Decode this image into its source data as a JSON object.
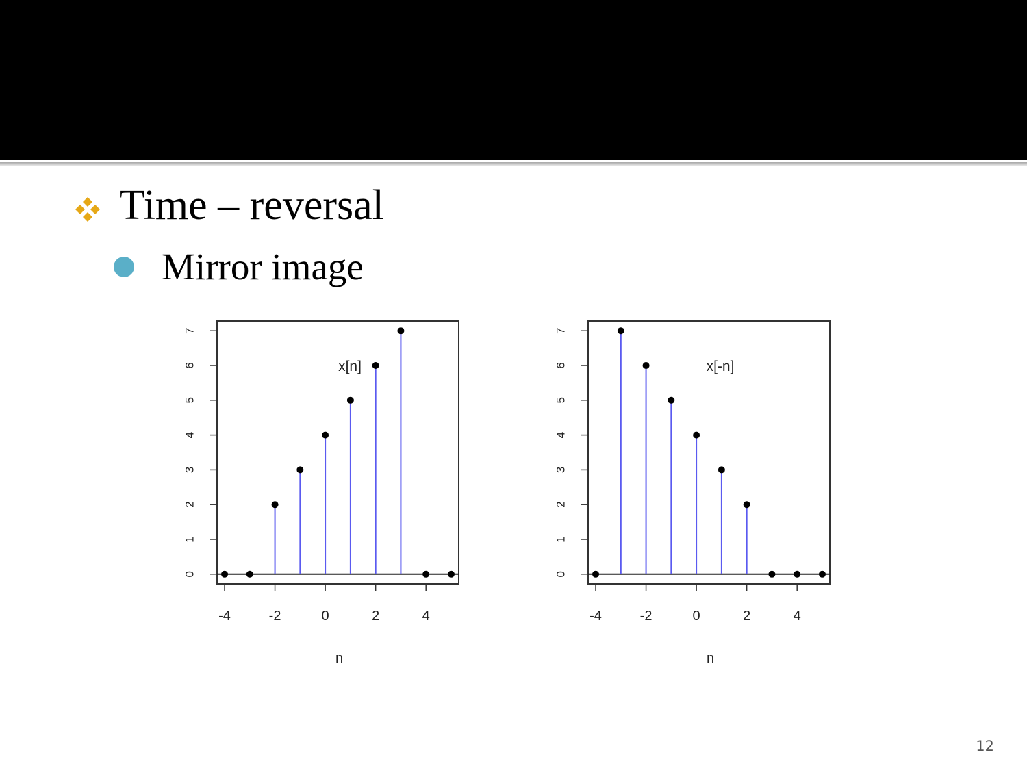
{
  "slide": {
    "bullet_l1": "Time – reversal",
    "bullet_l2": "Mirror image",
    "slide_number": "12",
    "bullet_l1_color": "#E6A817",
    "bullet_l2_color": "#5AAFC8",
    "title_bar_color": "#000000"
  },
  "chart_data": [
    {
      "type": "stem",
      "annotation": "x[n]",
      "xlabel": "n",
      "ylabel": "",
      "xlim": [
        -4.3,
        5.3
      ],
      "ylim": [
        -0.28,
        7.28
      ],
      "x_ticks": [
        "-4",
        "-2",
        "0",
        "2",
        "4"
      ],
      "y_ticks": [
        "0",
        "1",
        "2",
        "3",
        "4",
        "5",
        "6",
        "7"
      ],
      "x": [
        -4,
        -3,
        -2,
        -1,
        0,
        1,
        2,
        3,
        4,
        5
      ],
      "values": [
        0,
        0,
        2,
        3,
        4,
        5,
        6,
        7,
        0,
        0
      ],
      "stem_color": "#5A5AF0",
      "marker_color": "#000000"
    },
    {
      "type": "stem",
      "annotation": "x[-n]",
      "xlabel": "n",
      "ylabel": "",
      "xlim": [
        -4.3,
        5.3
      ],
      "ylim": [
        -0.28,
        7.28
      ],
      "x_ticks": [
        "-4",
        "-2",
        "0",
        "2",
        "4"
      ],
      "y_ticks": [
        "0",
        "1",
        "2",
        "3",
        "4",
        "5",
        "6",
        "7"
      ],
      "x": [
        -4,
        -3,
        -2,
        -1,
        0,
        1,
        2,
        3,
        4,
        5
      ],
      "values": [
        0,
        7,
        6,
        5,
        4,
        3,
        2,
        0,
        0,
        0
      ],
      "stem_color": "#5A5AF0",
      "marker_color": "#000000"
    }
  ]
}
